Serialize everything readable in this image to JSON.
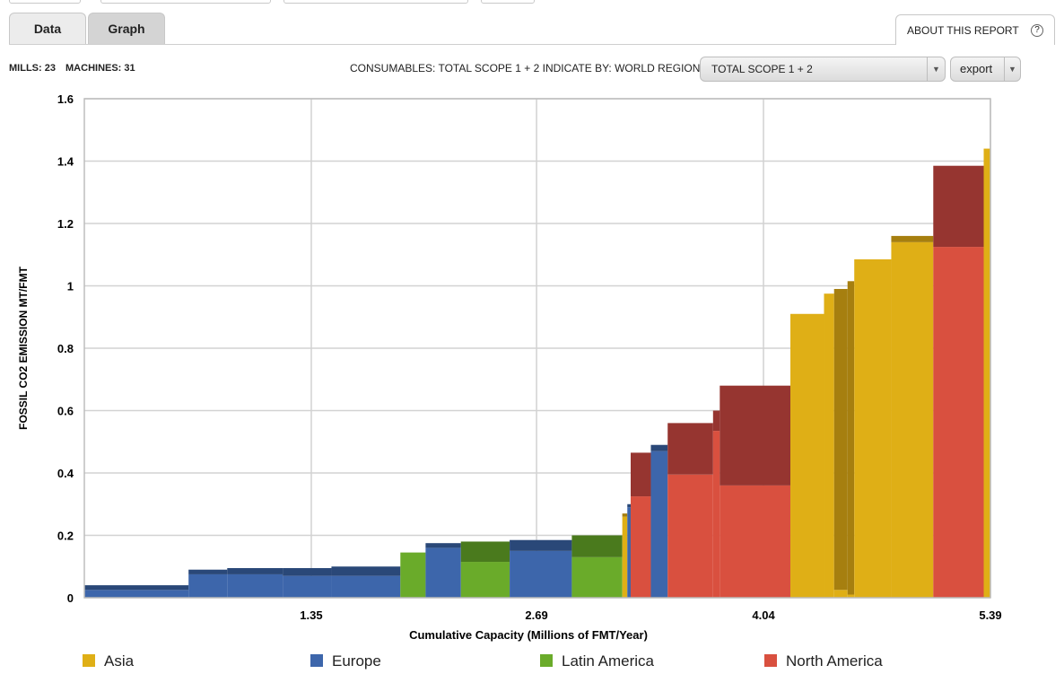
{
  "tabs": {
    "data": "Data",
    "graph": "Graph"
  },
  "about": {
    "label": "ABOUT THIS REPORT",
    "help": "?"
  },
  "stats": {
    "mills": "MILLS: 23",
    "machines": "MACHINES: 31"
  },
  "consumables_text": "CONSUMABLES: TOTAL SCOPE 1 + 2  INDICATE BY: WORLD REGION",
  "select": {
    "value": "TOTAL SCOPE 1 + 2",
    "arrow": "▼"
  },
  "export": {
    "label": "export",
    "arrow": "▼"
  },
  "colors": {
    "Asia": "#dfaf16",
    "Asia_dark": "#a67f0f",
    "Europe": "#3d66ab",
    "Europe_dark": "#2a4878",
    "Latin America": "#6aab2a",
    "Latin America_dark": "#4a7a1d",
    "North America": "#d9503f",
    "North America_dark": "#963530"
  },
  "chart_data": {
    "type": "bar",
    "title": "",
    "xlabel": "Cumulative Capacity (Millions of FMT/Year)",
    "ylabel": "FOSSIL CO2 EMISSION MT/FMT",
    "xlim": [
      0,
      5.39
    ],
    "ylim": [
      0,
      1.6
    ],
    "xticks": [
      "1.35",
      "2.69",
      "4.04",
      "5.39"
    ],
    "xtick_values": [
      1.35,
      2.69,
      4.04,
      5.39
    ],
    "yticks": [
      "0",
      "0.2",
      "0.4",
      "0.6",
      "0.8",
      "1",
      "1.2",
      "1.4",
      "1.6"
    ],
    "ytick_values": [
      0,
      0.2,
      0.4,
      0.6,
      0.8,
      1,
      1.2,
      1.4,
      1.6
    ],
    "grid": true,
    "legend_position": "bottom",
    "legend": [
      "Asia",
      "Europe",
      "Latin America",
      "North America"
    ],
    "bars": [
      {
        "region": "Europe",
        "x0": 0.0,
        "x1": 0.62,
        "base": 0.025,
        "total": 0.04
      },
      {
        "region": "Europe",
        "x0": 0.62,
        "x1": 0.85,
        "base": 0.075,
        "total": 0.09
      },
      {
        "region": "Europe",
        "x0": 0.85,
        "x1": 1.18,
        "base": 0.075,
        "total": 0.095
      },
      {
        "region": "Europe",
        "x0": 1.18,
        "x1": 1.47,
        "base": 0.07,
        "total": 0.095
      },
      {
        "region": "Europe",
        "x0": 1.47,
        "x1": 1.88,
        "base": 0.07,
        "total": 0.1
      },
      {
        "region": "Latin America",
        "x0": 1.88,
        "x1": 2.03,
        "base": 0.145,
        "total": 0.145
      },
      {
        "region": "Europe",
        "x0": 2.03,
        "x1": 2.24,
        "base": 0.16,
        "total": 0.175
      },
      {
        "region": "Latin America",
        "x0": 2.24,
        "x1": 2.53,
        "base": 0.115,
        "total": 0.18
      },
      {
        "region": "Europe",
        "x0": 2.53,
        "x1": 2.9,
        "base": 0.15,
        "total": 0.185
      },
      {
        "region": "Latin America",
        "x0": 2.9,
        "x1": 3.2,
        "base": 0.13,
        "total": 0.2
      },
      {
        "region": "Asia",
        "x0": 3.2,
        "x1": 3.23,
        "base": 0.26,
        "total": 0.27
      },
      {
        "region": "Europe",
        "x0": 3.23,
        "x1": 3.25,
        "base": 0.29,
        "total": 0.3
      },
      {
        "region": "North America",
        "x0": 3.25,
        "x1": 3.37,
        "base": 0.325,
        "total": 0.465
      },
      {
        "region": "Europe",
        "x0": 3.37,
        "x1": 3.47,
        "base": 0.47,
        "total": 0.49
      },
      {
        "region": "North America",
        "x0": 3.47,
        "x1": 3.74,
        "base": 0.395,
        "total": 0.56
      },
      {
        "region": "North America",
        "x0": 3.74,
        "x1": 3.78,
        "base": 0.535,
        "total": 0.6
      },
      {
        "region": "North America",
        "x0": 3.78,
        "x1": 4.2,
        "base": 0.36,
        "total": 0.68
      },
      {
        "region": "Asia",
        "x0": 4.2,
        "x1": 4.4,
        "base": 0.91,
        "total": 0.91
      },
      {
        "region": "Asia",
        "x0": 4.4,
        "x1": 4.46,
        "base": 0.975,
        "total": 0.975
      },
      {
        "region": "Asia",
        "x0": 4.46,
        "x1": 4.54,
        "base": 0.025,
        "total": 0.99
      },
      {
        "region": "Asia",
        "x0": 4.54,
        "x1": 4.58,
        "base": 0.01,
        "total": 1.015
      },
      {
        "region": "Asia",
        "x0": 4.58,
        "x1": 4.8,
        "base": 1.085,
        "total": 1.085
      },
      {
        "region": "Asia",
        "x0": 4.8,
        "x1": 5.05,
        "base": 1.14,
        "total": 1.16
      },
      {
        "region": "North America",
        "x0": 5.05,
        "x1": 5.35,
        "base": 1.125,
        "total": 1.385
      },
      {
        "region": "Asia",
        "x0": 5.35,
        "x1": 5.39,
        "base": 1.44,
        "total": 1.44
      }
    ]
  }
}
